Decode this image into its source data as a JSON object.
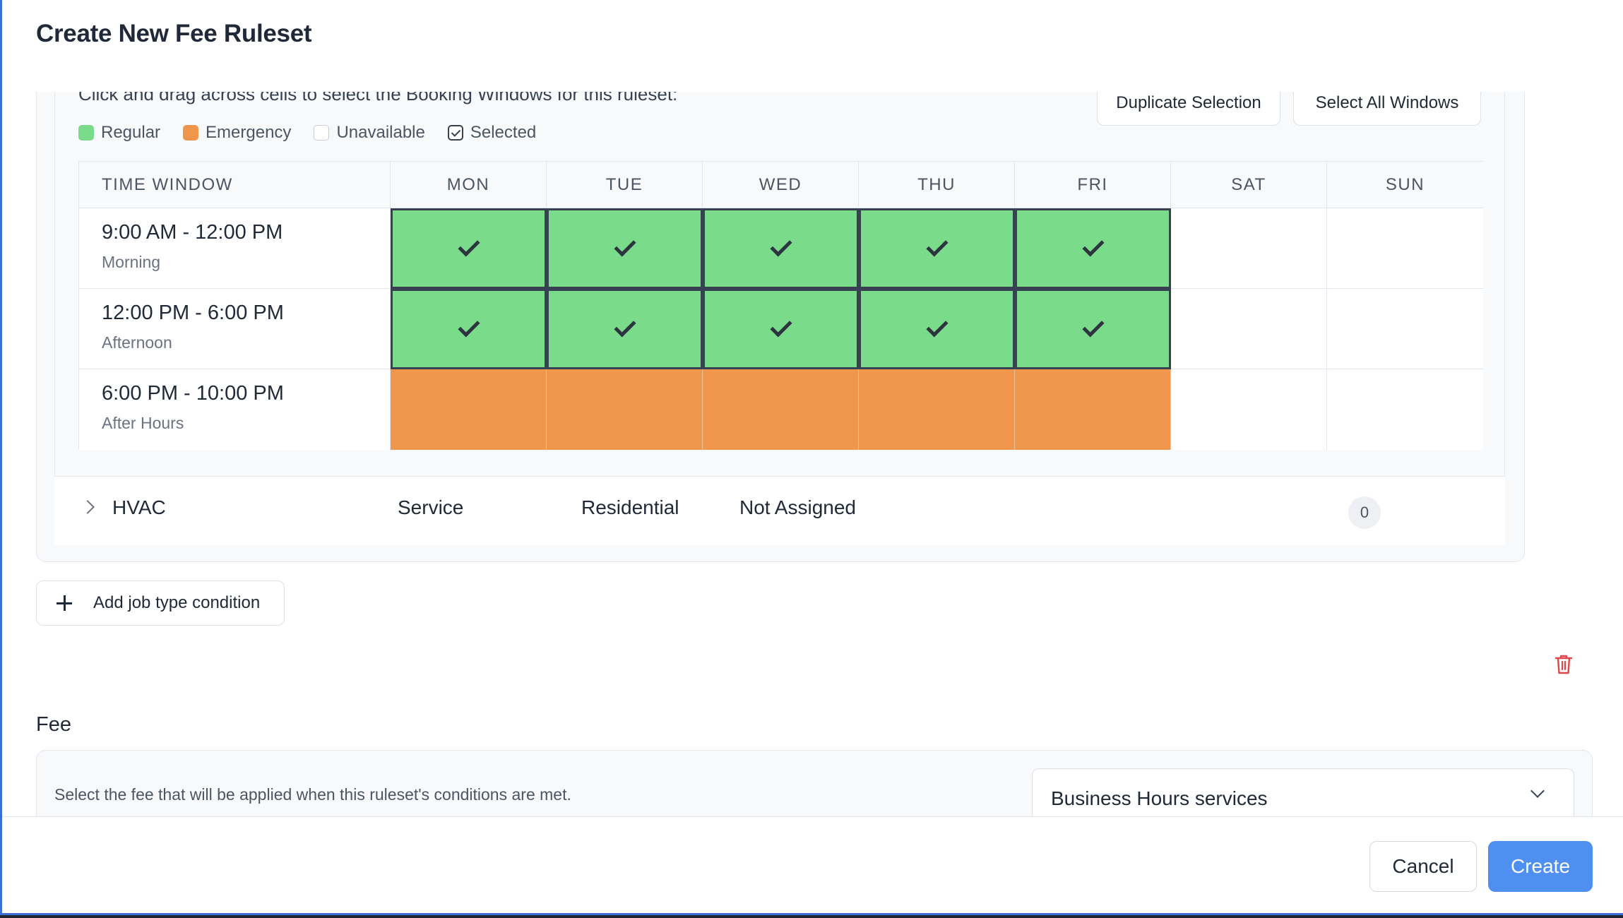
{
  "modal": {
    "title": "Create New Fee Ruleset"
  },
  "booking": {
    "instruction": "Click and drag across cells to select the Booking Windows for this ruleset:",
    "duplicate_label": "Duplicate Selection",
    "select_all_label": "Select All Windows",
    "legend": [
      {
        "label": "Regular",
        "color": "#7adc8a"
      },
      {
        "label": "Emergency",
        "color": "#ef964c"
      },
      {
        "label": "Unavailable",
        "color": "#ffffff"
      },
      {
        "label": "Selected",
        "icon": "check-square-icon"
      }
    ],
    "header_first": "TIME WINDOW",
    "days": [
      "MON",
      "TUE",
      "WED",
      "THU",
      "FRI",
      "SAT",
      "SUN"
    ],
    "rows": [
      {
        "time": "9:00 AM - 12:00 PM",
        "name": "Morning",
        "cells": [
          "regular-selected",
          "regular-selected",
          "regular-selected",
          "regular-selected",
          "regular-selected",
          "unavailable",
          "unavailable"
        ]
      },
      {
        "time": "12:00 PM - 6:00 PM",
        "name": "Afternoon",
        "cells": [
          "regular-selected",
          "regular-selected",
          "regular-selected",
          "regular-selected",
          "regular-selected",
          "unavailable",
          "unavailable"
        ]
      },
      {
        "time": "6:00 PM - 10:00 PM",
        "name": "After Hours",
        "cells": [
          "emergency",
          "emergency",
          "emergency",
          "emergency",
          "emergency",
          "unavailable",
          "unavailable"
        ]
      }
    ]
  },
  "job_type": {
    "trade": "HVAC",
    "category": "Service",
    "segment": "Residential",
    "assignment": "Not Assigned",
    "count": "0"
  },
  "add_condition_label": "Add job type condition",
  "fee": {
    "label": "Fee",
    "description": "Select the fee that will be applied when this ruleset's conditions are met.",
    "selected": "Business Hours services"
  },
  "footer": {
    "cancel_label": "Cancel",
    "create_label": "Create"
  }
}
